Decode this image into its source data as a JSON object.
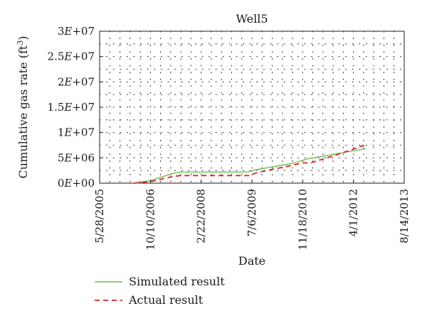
{
  "chart_data": {
    "type": "line",
    "title": "Well5",
    "xlabel": "Date",
    "ylabel": "Cumulative gas rate (ft",
    "ylabel_sup": "3",
    "ylabel_close": ")",
    "x_ticks": [
      "5/28/2005",
      "10/10/2006",
      "2/22/2008",
      "7/6/2009",
      "11/18/2010",
      "4/1/2012",
      "8/14/2013"
    ],
    "x_range": [
      "2005-05-28",
      "2013-08-14"
    ],
    "y_ticks": [
      {
        "mant": "3",
        "exp": "+07",
        "value": 30000000
      },
      {
        "mant": "2.5",
        "exp": "+07",
        "value": 25000000
      },
      {
        "mant": "2",
        "exp": "+07",
        "value": 20000000
      },
      {
        "mant": "1.5",
        "exp": "+07",
        "value": 15000000
      },
      {
        "mant": "1",
        "exp": "+07",
        "value": 10000000
      },
      {
        "mant": "5",
        "exp": "+06",
        "value": 5000000
      },
      {
        "mant": "0",
        "exp": "+00",
        "value": 0
      }
    ],
    "ylim": [
      0,
      30000000
    ],
    "grid": "dotted",
    "legend_position": "bottom-left",
    "series": [
      {
        "name": "Simulated result",
        "color": "#6abf4b",
        "style": "solid",
        "points": [
          [
            "2006-05-01",
            0
          ],
          [
            "2006-10-10",
            500000
          ],
          [
            "2007-05-15",
            1900000
          ],
          [
            "2007-08-01",
            2200000
          ],
          [
            "2009-06-01",
            2200000
          ],
          [
            "2009-08-01",
            2600000
          ],
          [
            "2010-09-01",
            4000000
          ],
          [
            "2011-01-01",
            4800000
          ],
          [
            "2011-09-01",
            5600000
          ],
          [
            "2012-02-01",
            6200000
          ],
          [
            "2012-08-01",
            6800000
          ]
        ]
      },
      {
        "name": "Actual result",
        "color": "#e02020",
        "style": "dashed",
        "points": [
          [
            "2006-05-01",
            0
          ],
          [
            "2006-10-10",
            300000
          ],
          [
            "2007-05-15",
            1300000
          ],
          [
            "2007-08-01",
            1500000
          ],
          [
            "2009-06-01",
            1500000
          ],
          [
            "2009-09-01",
            2100000
          ],
          [
            "2010-08-01",
            3500000
          ],
          [
            "2010-11-18",
            4000000
          ],
          [
            "2011-02-01",
            4000000
          ],
          [
            "2011-09-01",
            5300000
          ],
          [
            "2012-03-01",
            6500000
          ],
          [
            "2012-07-15",
            7500000
          ]
        ]
      }
    ]
  }
}
